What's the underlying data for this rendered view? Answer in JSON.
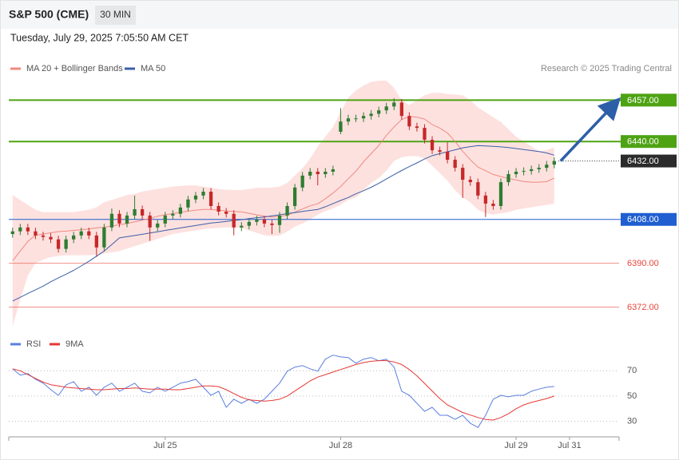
{
  "header": {
    "title": "S&P 500 (CME)",
    "interval": "30 MIN",
    "timestamp": "Tuesday, July 29, 2025 7:05:50 AM CET"
  },
  "chart_data": [
    {
      "type": "candlestick",
      "credit": "Research © 2025 Trading Central",
      "categories": [
        null,
        null,
        null,
        null,
        null,
        null,
        null,
        null,
        null,
        null,
        null,
        null,
        null,
        null,
        null,
        null,
        null,
        null,
        null,
        null,
        "Jul 25",
        null,
        null,
        null,
        null,
        null,
        null,
        null,
        null,
        null,
        null,
        null,
        null,
        null,
        null,
        null,
        null,
        null,
        null,
        null,
        null,
        null,
        null,
        "Jul 28",
        null,
        null,
        null,
        null,
        null,
        null,
        null,
        null,
        null,
        null,
        null,
        null,
        null,
        null,
        null,
        null,
        null,
        null,
        null,
        null,
        null,
        null,
        "Jul 29",
        null,
        null,
        null,
        null,
        null,
        null,
        "Jul 31",
        null,
        null,
        null,
        null,
        null,
        null
      ],
      "ylim": [
        6362,
        6485
      ],
      "open": [
        6402.0,
        6403.1,
        6404.7,
        6403.1,
        6401.4,
        6400.8,
        6399.8,
        6395.9,
        6399.8,
        6401.4,
        6403.1,
        6401.4,
        6396.5,
        6404.7,
        6410.3,
        6406.3,
        6409.6,
        6412.2,
        6409.6,
        6404.7,
        6406.3,
        6409.6,
        6410.3,
        6412.9,
        6416.2,
        6417.8,
        6419.4,
        6413.5,
        6411.2,
        6410.3,
        6404.7,
        6405.4,
        6407.0,
        6408.0,
        6406.3,
        6405.7,
        6409.6,
        6413.5,
        6421.1,
        6426.0,
        6427.6,
        6426.6,
        6427.6,
        6444.0,
        6448.2,
        6449.5,
        6449.5,
        6450.5,
        6451.4,
        6452.8,
        6454.4,
        6456.0,
        6450.5,
        6446.2,
        6445.6,
        6440.7,
        6436.4,
        6435.8,
        6432.5,
        6429.2,
        6424.3,
        6423.3,
        6417.8,
        6414.5,
        6413.5,
        6423.3,
        6426.6,
        6427.6,
        6427.9,
        6428.6,
        6429.2,
        6430.5,
        null,
        null,
        null,
        null,
        null,
        null,
        null,
        null
      ],
      "high": [
        6404.6,
        6406.2,
        6406.2,
        6404.6,
        6402.9,
        6402.3,
        6401.3,
        6401.3,
        6402.9,
        6404.6,
        6404.6,
        6402.9,
        6406.2,
        6412.5,
        6411.8,
        6411.1,
        6417.8,
        6413.7,
        6411.1,
        6407.8,
        6411.1,
        6411.8,
        6414.4,
        6417.7,
        6419.3,
        6420.9,
        6420.9,
        6415.0,
        6412.7,
        6411.8,
        6406.9,
        6408.5,
        6409.5,
        6409.5,
        6407.8,
        6411.1,
        6415.0,
        6422.6,
        6427.5,
        6429.1,
        6429.1,
        6429.1,
        6430.1,
        6453.7,
        6451.0,
        6451.0,
        6452.0,
        6452.9,
        6454.3,
        6455.9,
        6457.8,
        6457.5,
        6452.0,
        6447.7,
        6447.1,
        6442.2,
        6437.9,
        6439.7,
        6434.0,
        6430.7,
        6425.8,
        6424.8,
        6419.3,
        6416.0,
        6424.8,
        6428.1,
        6429.1,
        6429.4,
        6430.1,
        6430.7,
        6432.0,
        6433.5,
        null,
        null,
        null,
        null,
        null,
        null,
        null,
        null
      ],
      "low": [
        6400.5,
        6401.6,
        6401.6,
        6399.9,
        6399.3,
        6398.3,
        6394.4,
        6394.4,
        6398.3,
        6399.9,
        6399.9,
        6392.6,
        6395.0,
        6403.2,
        6404.8,
        6404.8,
        6408.1,
        6408.1,
        6399.2,
        6403.2,
        6404.8,
        6408.1,
        6408.8,
        6411.4,
        6414.7,
        6416.3,
        6412.0,
        6409.7,
        6408.8,
        6401.5,
        6403.2,
        6403.9,
        6405.5,
        6404.8,
        6402.0,
        6402.5,
        6408.1,
        6412.0,
        6419.6,
        6424.5,
        6422.0,
        6425.1,
        6426.1,
        6443.0,
        6446.7,
        6448.0,
        6448.0,
        6449.0,
        6449.9,
        6451.3,
        6452.9,
        6449.0,
        6444.7,
        6444.1,
        6439.2,
        6434.9,
        6434.3,
        6431.0,
        6427.7,
        6416.8,
        6421.8,
        6416.3,
        6409.0,
        6412.0,
        6412.0,
        6421.8,
        6425.1,
        6426.1,
        6426.4,
        6427.1,
        6427.7,
        6429.0,
        null,
        null,
        null,
        null,
        null,
        null,
        null,
        null
      ],
      "close": [
        6403.1,
        6404.7,
        6403.1,
        6401.4,
        6400.8,
        6399.8,
        6395.9,
        6399.8,
        6401.4,
        6403.1,
        6401.4,
        6396.5,
        6404.7,
        6410.3,
        6406.3,
        6409.6,
        6412.2,
        6409.6,
        6404.7,
        6406.3,
        6409.6,
        6410.3,
        6412.9,
        6416.2,
        6417.8,
        6419.4,
        6413.5,
        6411.2,
        6410.3,
        6404.7,
        6405.4,
        6407.0,
        6408.0,
        6406.3,
        6405.7,
        6409.6,
        6413.5,
        6421.1,
        6426.0,
        6427.6,
        6426.6,
        6427.6,
        6428.6,
        6448.2,
        6449.5,
        6449.5,
        6450.5,
        6451.4,
        6452.8,
        6454.4,
        6456.0,
        6450.5,
        6446.2,
        6445.6,
        6440.7,
        6436.4,
        6435.8,
        6432.5,
        6429.2,
        6424.3,
        6423.3,
        6417.8,
        6414.5,
        6413.5,
        6423.3,
        6426.6,
        6427.6,
        6427.9,
        6428.6,
        6429.2,
        6430.5,
        6432.0,
        null,
        null,
        null,
        null,
        null,
        null,
        null,
        null
      ],
      "up_color": "#2e7d32",
      "down_color": "#c62828",
      "series": [
        {
          "name": "MA 20 + Bollinger Bands",
          "color": "#f08a80",
          "band_color": "#fde1df",
          "values": [
            6391,
            6395,
            6399,
            6401.5,
            6402,
            6402.5,
            6403,
            6403.2,
            6403.5,
            6403.8,
            6404.1,
            6404.5,
            6404.8,
            6405.3,
            6405.8,
            6406.3,
            6407,
            6407.7,
            6408.4,
            6409.3,
            6409.9,
            6410.4,
            6410.9,
            6411.4,
            6411.8,
            6412.1,
            6412.1,
            6411.8,
            6411.5,
            6411.3,
            6411.1,
            6410.5,
            6409.9,
            6409.3,
            6409,
            6409.3,
            6409.7,
            6411,
            6412.3,
            6413.6,
            6414.4,
            6416.5,
            6418.8,
            6421.5,
            6424.7,
            6427.8,
            6431.7,
            6435,
            6438.4,
            6442.5,
            6446,
            6449,
            6450.3,
            6450,
            6449.2,
            6447,
            6445.5,
            6443.5,
            6440,
            6436,
            6432.5,
            6429.5,
            6428,
            6426.5,
            6425.6,
            6424.8,
            6424.2,
            6423.6,
            6423.3,
            6423.3,
            6423.5,
            6425,
            null,
            null,
            null,
            null,
            null,
            null,
            null,
            null
          ],
          "upper": [
            6418,
            6416,
            6414,
            6412,
            6411,
            6411,
            6411,
            6411,
            6411,
            6411.5,
            6412,
            6413,
            6415,
            6416,
            6417,
            6418,
            6418.5,
            6419.5,
            6420,
            6420.5,
            6421,
            6421.5,
            6421.8,
            6422,
            6422,
            6421.5,
            6421,
            6420.5,
            6420.2,
            6420.1,
            6420.1,
            6420.5,
            6421,
            6421,
            6421.1,
            6421.5,
            6423,
            6426,
            6429,
            6433,
            6438,
            6442,
            6446,
            6452,
            6458,
            6461,
            6463,
            6464.5,
            6465,
            6465,
            6462,
            6457,
            6455,
            6457,
            6459,
            6460,
            6460,
            6459.5,
            6459.3,
            6459,
            6457,
            6454,
            6452,
            6450,
            6448,
            6445,
            6442,
            6440,
            6438,
            6436,
            6436.5,
            6437.5,
            null,
            null,
            null,
            null,
            null,
            null,
            null,
            null
          ],
          "lower": [
            6364,
            6375,
            6385,
            6390,
            6391.5,
            6392.5,
            6393,
            6393.3,
            6393.3,
            6393.3,
            6393.3,
            6393.5,
            6394,
            6394.5,
            6395,
            6396,
            6397,
            6398,
            6399,
            6400,
            6401,
            6402,
            6402.5,
            6403,
            6403.5,
            6404,
            6404.3,
            6404.5,
            6404.7,
            6404.7,
            6404.5,
            6403.5,
            6402.5,
            6401.5,
            6401.2,
            6401.4,
            6403,
            6405,
            6406.3,
            6408,
            6410,
            6411.5,
            6412.5,
            6414,
            6416,
            6417,
            6420,
            6423,
            6425,
            6428,
            6432,
            6433.5,
            6434,
            6434,
            6433,
            6430,
            6427,
            6424,
            6420,
            6417,
            6415,
            6412,
            6410.5,
            6410,
            6410.5,
            6411,
            6412,
            6412.5,
            6413,
            6413.5,
            6414,
            6414.5,
            null,
            null,
            null,
            null,
            null,
            null,
            null,
            null
          ]
        },
        {
          "name": "MA 50",
          "color": "#3b5ea8",
          "values": [
            6374.5,
            6376,
            6377.6,
            6379.1,
            6380.6,
            6382.4,
            6384,
            6385.5,
            6387.1,
            6388.9,
            6390.8,
            6392.9,
            6395,
            6397.7,
            6400.4,
            6400.9,
            6401.4,
            6401.9,
            6402.4,
            6402.9,
            6403.5,
            6404,
            6404.5,
            6405,
            6405.5,
            6406,
            6406.5,
            6406.8,
            6407.2,
            6407.6,
            6407.9,
            6408.3,
            6408.7,
            6409,
            6409.5,
            6409.9,
            6410.4,
            6410.8,
            6411.3,
            6411.7,
            6412.1,
            6413.2,
            6414.5,
            6415.8,
            6417,
            6418.5,
            6419.8,
            6421.2,
            6422.8,
            6424.6,
            6426.4,
            6428.1,
            6429.7,
            6431.2,
            6432.8,
            6434.2,
            6435,
            6435.8,
            6436.6,
            6437.4,
            6437.9,
            6438.3,
            6438.2,
            6438,
            6437.8,
            6437.5,
            6437.1,
            6436.7,
            6436.3,
            6435.9,
            6435.3,
            6434.4,
            null,
            null,
            null,
            null,
            null,
            null,
            null,
            null
          ]
        }
      ],
      "levels": [
        {
          "value": 6457,
          "label": "6457.00",
          "color": "#4ea313",
          "box": true,
          "line": "solid"
        },
        {
          "value": 6440,
          "label": "6440.00",
          "color": "#4ea313",
          "box": true,
          "line": "solid"
        },
        {
          "value": 6432,
          "label": "6432.00",
          "color": "#2b2b2b",
          "box": true,
          "line": "dotted"
        },
        {
          "value": 6408,
          "label": "6408.00",
          "color": "#1f5fd0",
          "box": true,
          "line": "solid"
        },
        {
          "value": 6390,
          "label": "6390.00",
          "color": "#e8463a",
          "box": false,
          "line": "solid"
        },
        {
          "value": 6372,
          "label": "6372.00",
          "color": "#e8463a",
          "box": false,
          "line": "solid"
        }
      ],
      "arrow_color": "#2d5fa8"
    },
    {
      "type": "line",
      "ylim": [
        19,
        98
      ],
      "yticks": [
        30,
        50,
        70
      ],
      "grid": true,
      "series": [
        {
          "name": "RSI",
          "color": "#5b7fe0",
          "values": [
            71.6,
            66.5,
            67.8,
            63.3,
            60.2,
            55.1,
            50.6,
            58.9,
            61.4,
            53.8,
            57,
            50.6,
            57,
            60.2,
            53.8,
            57,
            60.2,
            53.8,
            52.5,
            57,
            53.8,
            57,
            60.2,
            61.4,
            63.3,
            57,
            50.6,
            53.8,
            41.1,
            47.5,
            44.3,
            47.5,
            44.3,
            47.5,
            53.8,
            60.2,
            69.7,
            72.9,
            74.1,
            71.6,
            69.7,
            79.2,
            82.4,
            81,
            80.5,
            76,
            79.2,
            80.5,
            77.9,
            79.2,
            72.9,
            53.8,
            50.6,
            44.3,
            37.9,
            41.1,
            34.8,
            34.8,
            31.6,
            34.8,
            28.4,
            25.2,
            34.8,
            47.5,
            50.6,
            49.4,
            50.6,
            50.6,
            53.8,
            55.5,
            57,
            57.6,
            null,
            null,
            null,
            null,
            null,
            null,
            null,
            null
          ]
        },
        {
          "name": "9MA",
          "color": "#e53935",
          "values": [
            71.6,
            70,
            67,
            64,
            61,
            59,
            58,
            57,
            56.5,
            56,
            55.5,
            55,
            55,
            55.5,
            56,
            56,
            56.5,
            56,
            55.5,
            55.5,
            55.5,
            55,
            55,
            56,
            57,
            58,
            58,
            57.5,
            55,
            52,
            49,
            47,
            46.5,
            46,
            46.5,
            47.5,
            50,
            54,
            58,
            62,
            65,
            67,
            69,
            71,
            73,
            75,
            76.5,
            77.5,
            78,
            78,
            77,
            75,
            71,
            66,
            60,
            54,
            48,
            43,
            40,
            37,
            35,
            33,
            31.5,
            31,
            33,
            36,
            40,
            43,
            45,
            46.5,
            48,
            50,
            null,
            null,
            null,
            null,
            null,
            null,
            null,
            null
          ]
        }
      ]
    }
  ]
}
